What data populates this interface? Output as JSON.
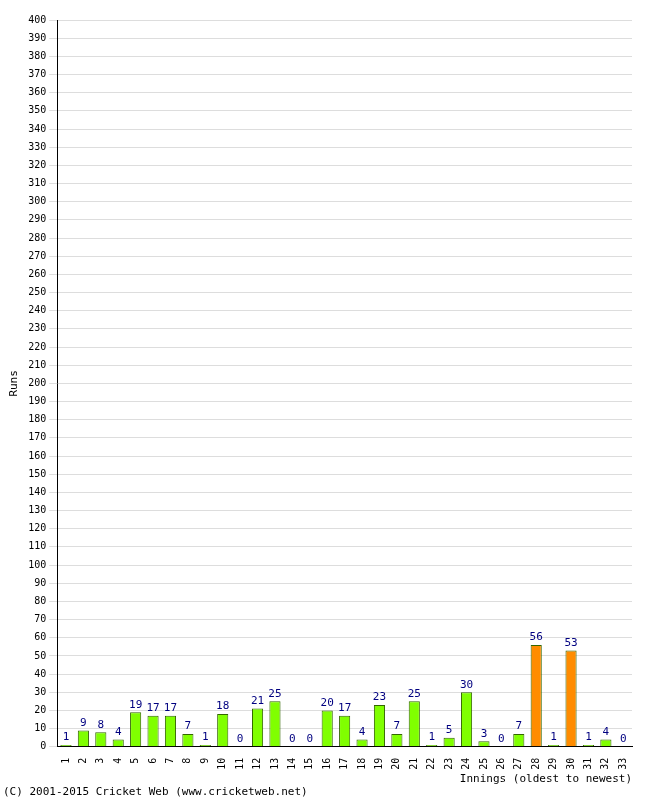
{
  "chart_data": {
    "type": "bar",
    "x_label": "Innings (oldest to newest)",
    "y_label": "Runs",
    "annotation": "(C) 2001-2015 Cricket Web (www.cricketweb.net)",
    "categories": [
      "1",
      "2",
      "3",
      "4",
      "5",
      "6",
      "7",
      "8",
      "9",
      "10",
      "11",
      "12",
      "13",
      "14",
      "15",
      "16",
      "17",
      "18",
      "19",
      "20",
      "21",
      "22",
      "23",
      "24",
      "25",
      "26",
      "27",
      "28",
      "29",
      "30",
      "31",
      "32",
      "33"
    ],
    "values": [
      1,
      9,
      8,
      4,
      19,
      17,
      17,
      7,
      1,
      18,
      0,
      21,
      25,
      0,
      0,
      20,
      17,
      4,
      23,
      7,
      25,
      1,
      5,
      30,
      3,
      0,
      7,
      56,
      1,
      53,
      1,
      4,
      0
    ],
    "colors": [
      "#80ff00",
      "#80ff00",
      "#80ff00",
      "#80ff00",
      "#80ff00",
      "#80ff00",
      "#80ff00",
      "#80ff00",
      "#80ff00",
      "#80ff00",
      "#80ff00",
      "#80ff00",
      "#80ff00",
      "#80ff00",
      "#80ff00",
      "#80ff00",
      "#80ff00",
      "#80ff00",
      "#80ff00",
      "#80ff00",
      "#80ff00",
      "#80ff00",
      "#80ff00",
      "#80ff00",
      "#80ff00",
      "#80ff00",
      "#80ff00",
      "#ff8c00",
      "#80ff00",
      "#ff8c00",
      "#80ff00",
      "#80ff00",
      "#80ff00"
    ],
    "ylim": [
      0,
      400
    ],
    "yticks": [
      0,
      10,
      20,
      30,
      40,
      50,
      60,
      70,
      80,
      90,
      100,
      110,
      120,
      130,
      140,
      150,
      160,
      170,
      180,
      190,
      200,
      210,
      220,
      230,
      240,
      250,
      260,
      270,
      280,
      290,
      300,
      310,
      320,
      330,
      340,
      350,
      360,
      370,
      380,
      390,
      400
    ],
    "grid": true,
    "data_labels": true
  }
}
